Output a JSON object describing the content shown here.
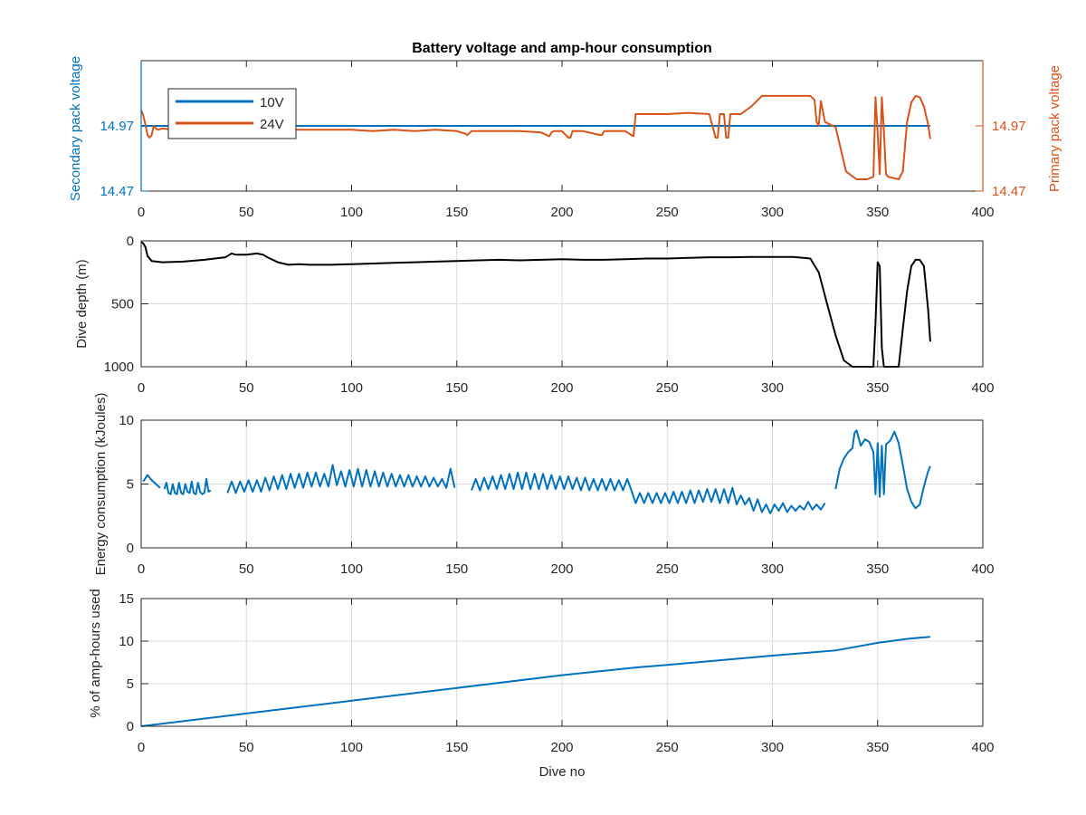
{
  "chart_data": [
    {
      "type": "line",
      "title": "Battery voltage and amp-hour consumption",
      "xlabel": "",
      "ylabel_left": "Secondary pack voltage",
      "ylabel_right": "Primary pack voltage",
      "xlim": [
        0,
        400
      ],
      "xticks": [
        "0",
        "50",
        "100",
        "150",
        "200",
        "250",
        "300",
        "350",
        "400"
      ],
      "ylim": [
        14.47,
        15.47
      ],
      "yticks_left": [
        "14.47",
        "14.97"
      ],
      "yticks_right": [
        "14.47",
        "14.97"
      ],
      "grid": false,
      "legend": {
        "position": "top-left",
        "entries": [
          "10V",
          "24V"
        ]
      },
      "colors": {
        "left": "#0072BD",
        "right": "#D95319"
      },
      "series": [
        {
          "name": "10V",
          "axis": "left",
          "color": "#0072BD",
          "x": [
            0,
            375
          ],
          "y": [
            14.97,
            14.97
          ]
        },
        {
          "name": "24V",
          "axis": "right",
          "color": "#D95319",
          "x": [
            0,
            1,
            2,
            3,
            4,
            5,
            6,
            7,
            8,
            10,
            15,
            20,
            30,
            40,
            50,
            60,
            70,
            80,
            90,
            100,
            110,
            120,
            130,
            140,
            150,
            154,
            155,
            157,
            160,
            170,
            180,
            190,
            194,
            195,
            196,
            200,
            203,
            204,
            205,
            210,
            218,
            219,
            220,
            225,
            230,
            233,
            234,
            235,
            240,
            250,
            260,
            270,
            273,
            274,
            275,
            277,
            278,
            279,
            280,
            285,
            290,
            295,
            300,
            310,
            318,
            320,
            321,
            322,
            323,
            325,
            330,
            335,
            340,
            345,
            348,
            349,
            350,
            351,
            352,
            353,
            354,
            355,
            360,
            362,
            364,
            366,
            368,
            370,
            372,
            374,
            375
          ],
          "y": [
            15.09,
            15.05,
            14.98,
            14.9,
            14.88,
            14.9,
            14.97,
            14.95,
            14.94,
            14.95,
            14.94,
            14.94,
            14.95,
            14.93,
            14.94,
            14.95,
            14.94,
            14.94,
            14.94,
            14.94,
            14.93,
            14.94,
            14.93,
            14.94,
            14.93,
            14.91,
            14.9,
            14.93,
            14.93,
            14.93,
            14.93,
            14.92,
            14.89,
            14.92,
            14.93,
            14.93,
            14.88,
            14.88,
            14.93,
            14.93,
            14.9,
            14.9,
            14.93,
            14.93,
            14.93,
            14.9,
            14.89,
            15.06,
            15.06,
            15.06,
            15.07,
            15.06,
            14.88,
            14.88,
            15.06,
            15.06,
            14.88,
            14.88,
            15.06,
            15.06,
            15.12,
            15.2,
            15.2,
            15.2,
            15.2,
            15.17,
            15.0,
            14.97,
            15.16,
            15.0,
            14.96,
            14.62,
            14.56,
            14.56,
            14.58,
            15.19,
            14.92,
            14.6,
            15.19,
            14.93,
            14.6,
            14.58,
            14.56,
            14.62,
            15.0,
            15.15,
            15.2,
            15.19,
            15.12,
            14.98,
            14.87
          ]
        }
      ]
    },
    {
      "type": "line",
      "xlabel": "",
      "ylabel": "Dive depth (m)",
      "xlim": [
        0,
        400
      ],
      "xticks": [
        "0",
        "50",
        "100",
        "150",
        "200",
        "250",
        "300",
        "350",
        "400"
      ],
      "ylim": [
        0,
        1000
      ],
      "y_reversed": true,
      "yticks": [
        "0",
        "500",
        "1000"
      ],
      "grid": true,
      "series": [
        {
          "color": "#000000",
          "x": [
            0,
            1,
            2,
            3,
            5,
            10,
            20,
            30,
            40,
            43,
            45,
            50,
            55,
            58,
            60,
            65,
            70,
            75,
            80,
            90,
            100,
            110,
            120,
            130,
            140,
            150,
            160,
            170,
            180,
            190,
            200,
            210,
            220,
            230,
            240,
            250,
            260,
            270,
            280,
            290,
            300,
            310,
            318,
            322,
            326,
            330,
            334,
            338,
            340,
            345,
            348,
            349,
            350,
            351,
            352,
            353,
            354,
            355,
            358,
            360,
            362,
            364,
            366,
            368,
            370,
            372,
            374,
            375
          ],
          "y": [
            10,
            20,
            50,
            120,
            160,
            170,
            165,
            150,
            130,
            100,
            110,
            110,
            100,
            110,
            130,
            170,
            190,
            185,
            190,
            190,
            185,
            180,
            175,
            170,
            165,
            160,
            155,
            150,
            155,
            150,
            145,
            150,
            150,
            145,
            140,
            140,
            135,
            130,
            130,
            128,
            128,
            128,
            140,
            250,
            500,
            750,
            950,
            1000,
            1000,
            1000,
            1000,
            650,
            170,
            200,
            850,
            1000,
            1000,
            1000,
            1000,
            1000,
            700,
            400,
            200,
            150,
            150,
            200,
            550,
            800
          ]
        }
      ]
    },
    {
      "type": "line",
      "xlabel": "",
      "ylabel": "Energy consumption (kJoules)",
      "xlim": [
        0,
        400
      ],
      "xticks": [
        "0",
        "50",
        "100",
        "150",
        "200",
        "250",
        "300",
        "350",
        "400"
      ],
      "ylim": [
        0,
        10
      ],
      "yticks": [
        "0",
        "5",
        "10"
      ],
      "grid": true,
      "series": [
        {
          "color": "#0072BD",
          "segments": [
            {
              "x": [
                1,
                3,
                5,
                7,
                9
              ],
              "y": [
                5.2,
                5.7,
                5.3,
                5.0,
                4.7
              ]
            },
            {
              "x": [
                11,
                12,
                13,
                14,
                15,
                16,
                17,
                18,
                19,
                20,
                21,
                22,
                23,
                24,
                25,
                26,
                27,
                28,
                29,
                30,
                31,
                32,
                33
              ],
              "y": [
                4.6,
                5.1,
                4.3,
                4.2,
                5.0,
                4.3,
                4.2,
                5.1,
                4.3,
                4.2,
                5.0,
                4.4,
                4.3,
                5.2,
                4.3,
                4.2,
                5.1,
                4.4,
                4.2,
                4.3,
                5.4,
                4.4,
                4.5
              ]
            },
            {
              "x": [
                41,
                43,
                45,
                47,
                49,
                51,
                53,
                55,
                57,
                59,
                61,
                63,
                65,
                67,
                69,
                71,
                73,
                75,
                77,
                79,
                81,
                83,
                85,
                87,
                89,
                91,
                93,
                95,
                97,
                99,
                101,
                103,
                105,
                107,
                109,
                111,
                113,
                115,
                117,
                119,
                121,
                123,
                125,
                127,
                129,
                131,
                133,
                135,
                137,
                139,
                141,
                143,
                145,
                147,
                149
              ],
              "y": [
                4.3,
                5.2,
                4.3,
                5.2,
                4.4,
                5.3,
                4.4,
                5.3,
                4.4,
                5.5,
                4.5,
                5.6,
                4.6,
                5.7,
                4.6,
                5.8,
                4.7,
                5.8,
                4.7,
                5.9,
                4.8,
                5.9,
                4.8,
                5.8,
                4.8,
                6.5,
                4.9,
                6.0,
                4.8,
                6.1,
                4.8,
                6.2,
                4.8,
                6.1,
                4.8,
                6.0,
                4.8,
                5.9,
                4.8,
                5.8,
                4.8,
                5.7,
                4.8,
                5.7,
                4.8,
                5.6,
                4.8,
                5.6,
                4.8,
                5.5,
                4.8,
                5.4,
                4.7,
                6.2,
                4.7
              ]
            },
            {
              "x": [
                157,
                159,
                161,
                163,
                165,
                167,
                169,
                171,
                173,
                175,
                177,
                179,
                181,
                183,
                185,
                187,
                189,
                191,
                193,
                195,
                197,
                199,
                201,
                203,
                205,
                207,
                209,
                211,
                213,
                215,
                217,
                219,
                221,
                223,
                225,
                227,
                229,
                231,
                233,
                235,
                237,
                239,
                241,
                243,
                245,
                247,
                249,
                251,
                253,
                255,
                257,
                259,
                261,
                263,
                265,
                267,
                269,
                271,
                273,
                275,
                277,
                279,
                281,
                283,
                285,
                287,
                289,
                291,
                293,
                295,
                297,
                299,
                301,
                303,
                305,
                307,
                309,
                311,
                313,
                315,
                317,
                319,
                321,
                323,
                325
              ],
              "y": [
                4.5,
                5.4,
                4.5,
                5.5,
                4.6,
                5.6,
                4.6,
                5.7,
                4.6,
                5.8,
                4.6,
                5.9,
                4.6,
                5.9,
                4.6,
                5.8,
                4.6,
                5.8,
                4.6,
                5.7,
                4.6,
                5.6,
                4.6,
                5.6,
                4.6,
                5.5,
                4.5,
                5.5,
                4.5,
                5.4,
                4.5,
                5.4,
                4.5,
                5.4,
                4.5,
                5.3,
                4.5,
                5.4,
                4.5,
                3.5,
                4.3,
                3.5,
                4.3,
                3.5,
                4.3,
                3.5,
                4.3,
                3.5,
                4.4,
                3.5,
                4.4,
                3.5,
                4.5,
                3.5,
                4.5,
                3.6,
                4.6,
                3.6,
                4.6,
                3.5,
                4.6,
                3.5,
                4.7,
                3.4,
                4.1,
                3.4,
                3.9,
                2.9,
                3.8,
                2.8,
                3.4,
                2.7,
                3.4,
                2.9,
                3.5,
                2.8,
                3.3,
                2.9,
                3.3,
                3.0,
                3.6,
                3.0,
                3.4,
                3.0,
                3.5
              ]
            },
            {
              "x": [
                330,
                332,
                334,
                336,
                338,
                339,
                340,
                341,
                342,
                344,
                346,
                348,
                349,
                350,
                351,
                352,
                353,
                354,
                356,
                358,
                360,
                362,
                364,
                366,
                368,
                370,
                372,
                374,
                375
              ],
              "y": [
                4.6,
                6.2,
                7.0,
                7.5,
                7.8,
                9.0,
                9.2,
                8.6,
                8.0,
                8.5,
                8.3,
                7.5,
                4.2,
                8.2,
                4.0,
                8.0,
                4.2,
                8.1,
                8.4,
                9.1,
                8.2,
                6.5,
                4.6,
                3.6,
                3.1,
                3.4,
                4.8,
                6.0,
                6.4
              ]
            }
          ]
        }
      ]
    },
    {
      "type": "line",
      "xlabel": "Dive no",
      "ylabel": "% of amp-hours used",
      "xlim": [
        0,
        400
      ],
      "xticks": [
        "0",
        "50",
        "100",
        "150",
        "200",
        "250",
        "300",
        "350",
        "400"
      ],
      "ylim": [
        0,
        15
      ],
      "yticks": [
        "0",
        "5",
        "10",
        "15"
      ],
      "grid": true,
      "series": [
        {
          "color": "#0072BD",
          "x": [
            0,
            50,
            100,
            150,
            200,
            235,
            250,
            300,
            330,
            350,
            365,
            375
          ],
          "y": [
            0,
            1.5,
            3.0,
            4.5,
            6.0,
            6.9,
            7.2,
            8.3,
            8.9,
            9.8,
            10.3,
            10.5
          ]
        }
      ]
    }
  ]
}
